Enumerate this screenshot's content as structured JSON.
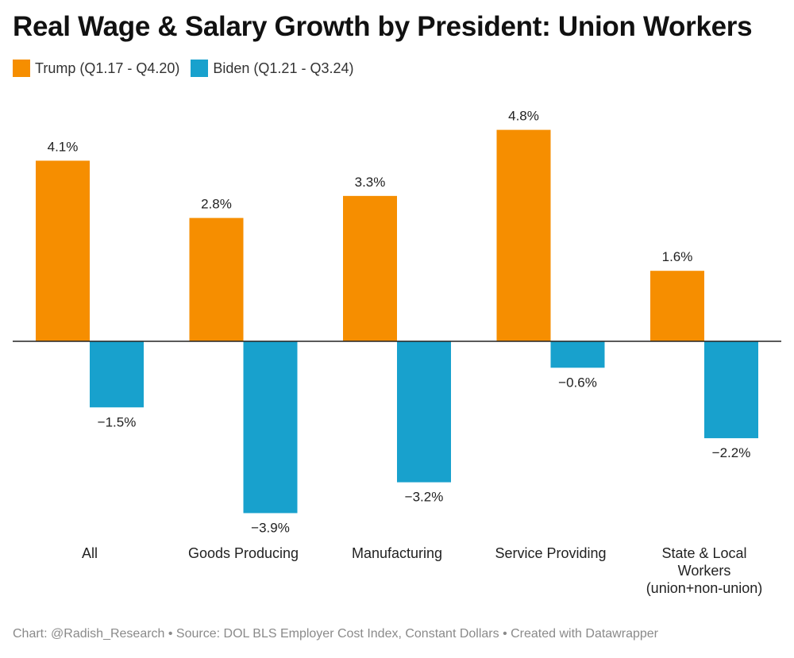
{
  "chart_data": {
    "type": "bar",
    "title": "Real Wage & Salary Growth by President: Union Workers",
    "categories": [
      [
        "All"
      ],
      [
        "Goods Producing"
      ],
      [
        "Manufacturing"
      ],
      [
        "Service Providing"
      ],
      [
        "State & Local",
        "Workers",
        "(union+non-union)"
      ]
    ],
    "series": [
      {
        "name": "Trump (Q1.17 - Q4.20)",
        "color": "#F68E00",
        "values": [
          4.1,
          2.8,
          3.3,
          4.8,
          1.6
        ],
        "labels": [
          "4.1%",
          "2.8%",
          "3.3%",
          "4.8%",
          "1.6%"
        ]
      },
      {
        "name": "Biden (Q1.21 - Q3.24)",
        "color": "#18A1CD",
        "values": [
          -1.5,
          -3.9,
          -3.2,
          -0.6,
          -2.2
        ],
        "labels": [
          "−1.5%",
          "−3.9%",
          "−3.2%",
          "−0.6%",
          "−2.2%"
        ]
      }
    ],
    "unit": "%",
    "legend_position": "top-left",
    "grid": false
  },
  "footer": {
    "text": "Chart: @Radish_Research • Source: DOL BLS Employer Cost Index, Constant Dollars • Created with Datawrapper"
  }
}
